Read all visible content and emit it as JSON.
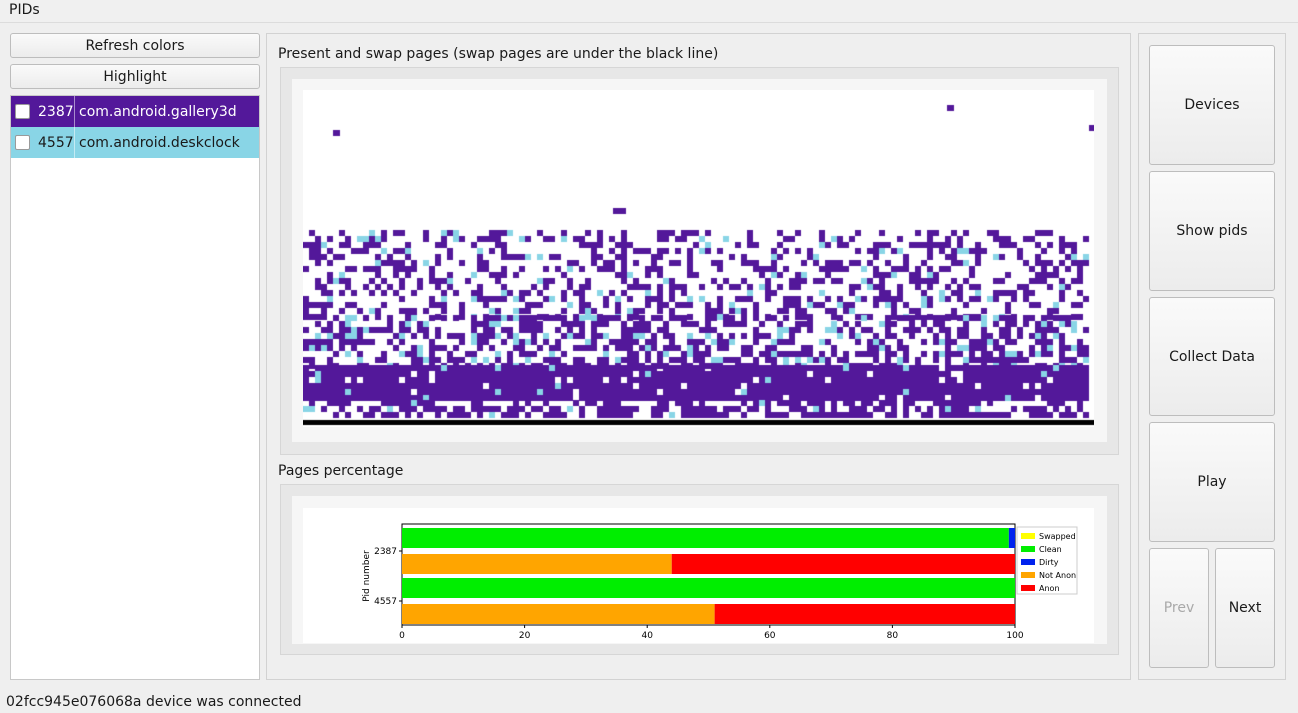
{
  "menu": {
    "pids_label": "PIDs"
  },
  "left": {
    "refresh_label": "Refresh colors",
    "highlight_label": "Highlight",
    "pids": [
      {
        "pid": "2387",
        "name": "com.android.gallery3d",
        "color": "#53189a",
        "text_color": "#ffffff"
      },
      {
        "pid": "4557",
        "name": "com.android.deskclock",
        "color": "#89d5e6",
        "text_color": "#1a1a1a"
      }
    ]
  },
  "main": {
    "pages_title": "Present and swap pages (swap pages are under the black line)",
    "percent_title": "Pages percentage"
  },
  "right": {
    "devices_label": "Devices",
    "show_pids_label": "Show pids",
    "collect_label": "Collect Data",
    "play_label": "Play",
    "prev_label": "Prev",
    "next_label": "Next"
  },
  "status": {
    "text": "02fcc945e076068a device was connected"
  },
  "chart_data": {
    "type": "bar",
    "orientation": "horizontal",
    "stacked": true,
    "ylabel": "Pid number",
    "xlabel": "",
    "xlim": [
      0,
      100
    ],
    "xticks": [
      "0",
      "20",
      "40",
      "60",
      "80",
      "100"
    ],
    "pids": [
      "2387",
      "4557"
    ],
    "bars": [
      {
        "pid": "2387",
        "row": "top",
        "segments": [
          {
            "series": "Clean",
            "value": 99
          },
          {
            "series": "Dirty",
            "value": 1
          }
        ]
      },
      {
        "pid": "2387",
        "row": "bottom",
        "segments": [
          {
            "series": "Not Anon",
            "value": 44
          },
          {
            "series": "Anon",
            "value": 56
          }
        ]
      },
      {
        "pid": "4557",
        "row": "top",
        "segments": [
          {
            "series": "Clean",
            "value": 100
          }
        ]
      },
      {
        "pid": "4557",
        "row": "bottom",
        "segments": [
          {
            "series": "Not Anon",
            "value": 51
          },
          {
            "series": "Anon",
            "value": 49
          }
        ]
      }
    ],
    "legend": [
      {
        "name": "Swapped",
        "color": "#ffff00"
      },
      {
        "name": "Clean",
        "color": "#00ee00"
      },
      {
        "name": "Dirty",
        "color": "#0022ee"
      },
      {
        "name": "Not Anon",
        "color": "#ffa500"
      },
      {
        "name": "Anon",
        "color": "#ff0000"
      }
    ],
    "legend_position": "top-right"
  }
}
